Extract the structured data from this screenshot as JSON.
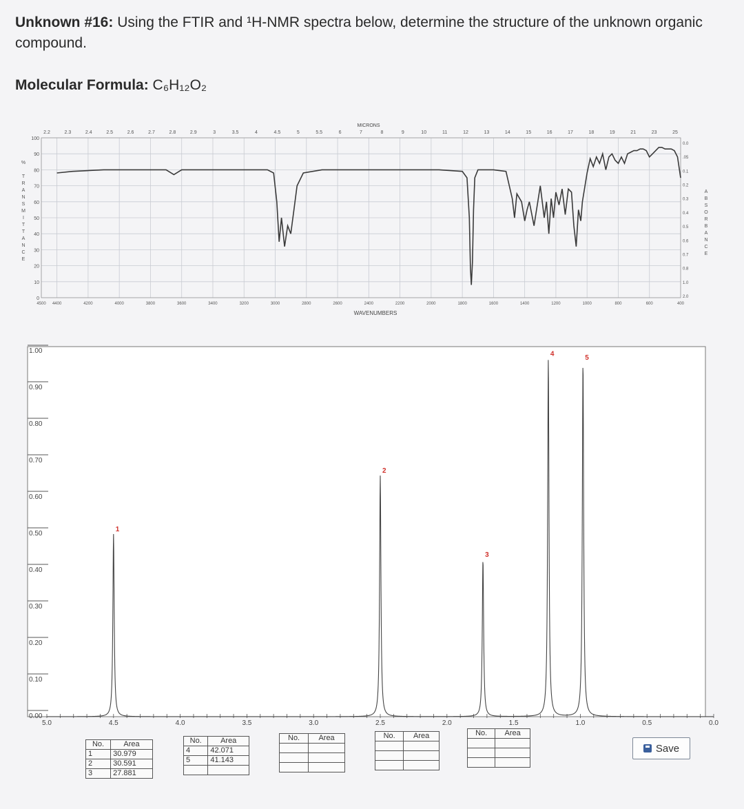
{
  "question": {
    "label": "Unknown #16:",
    "text": " Using the FTIR and ¹H-NMR spectra below, determine the structure of the unknown organic compound."
  },
  "formula": {
    "label": "Molecular Formula:",
    "value": " C₆H₁₂O₂"
  },
  "chart_data": [
    {
      "type": "line",
      "title": "",
      "xlabel": "WAVENUMBERS",
      "top_axis_label": "MICRONS",
      "ylabel": "% TRANSMITTANCE",
      "right_axis_label": "ABSORBANCE",
      "x_axis_reversed": true,
      "xlim": [
        4500,
        400
      ],
      "ylim": [
        0,
        100
      ],
      "grid": true,
      "x_ticks": [
        "4500",
        "4400",
        "4200",
        "4000",
        "3800",
        "3600",
        "3400",
        "3200",
        "3000",
        "2800",
        "2600",
        "2400",
        "2200",
        "2000",
        "1800",
        "1600",
        "1400",
        "1200",
        "1000",
        "800",
        "600",
        "400"
      ],
      "y_ticks": [
        "100",
        "90",
        "80",
        "70",
        "60",
        "50",
        "40",
        "30",
        "20",
        "10",
        "0"
      ],
      "top_ticks": [
        "2.2",
        "2.3",
        "2.4",
        "2.5",
        "2.6",
        "2.7",
        "2.8",
        "2.9",
        "3",
        "3.5",
        "4",
        "4.5",
        "5",
        "5.5",
        "6",
        "7",
        "8",
        "9",
        "10",
        "11",
        "12",
        "13",
        "14",
        "15",
        "16",
        "17",
        "18",
        "19",
        "21",
        "23",
        "25"
      ],
      "right_ticks": [
        "0.0",
        ".05",
        "0.1",
        "0.2",
        "0.3",
        "0.4",
        "0.5",
        "0.6",
        "0.7",
        "0.8",
        "1.0",
        "2.0"
      ],
      "series": [
        {
          "x": [
            4400,
            4300,
            4100,
            3900,
            3700,
            3650,
            3600,
            3550,
            3500,
            3300,
            3100,
            3050,
            3010,
            2990,
            2975,
            2960,
            2940,
            2920,
            2900,
            2880,
            2860,
            2820,
            2700,
            2500,
            2300,
            2100,
            1950,
            1800,
            1770,
            1755,
            1748,
            1742,
            1735,
            1728,
            1720,
            1700,
            1650,
            1600,
            1520,
            1480,
            1465,
            1450,
            1420,
            1400,
            1385,
            1370,
            1340,
            1300,
            1275,
            1260,
            1245,
            1230,
            1215,
            1200,
            1180,
            1160,
            1140,
            1120,
            1100,
            1085,
            1070,
            1055,
            1040,
            1030,
            1000,
            980,
            960,
            940,
            920,
            900,
            880,
            860,
            840,
            820,
            800,
            780,
            760,
            740,
            720,
            700,
            680,
            660,
            640,
            620,
            600,
            580,
            560,
            540,
            520,
            500,
            480,
            460,
            440,
            420,
            400
          ],
          "y": [
            78,
            79,
            80,
            80,
            80,
            77,
            80,
            80,
            80,
            80,
            80,
            80,
            78,
            60,
            35,
            50,
            32,
            45,
            40,
            55,
            70,
            78,
            80,
            80,
            80,
            80,
            80,
            79,
            75,
            50,
            18,
            8,
            22,
            55,
            75,
            80,
            80,
            80,
            79,
            62,
            50,
            65,
            60,
            48,
            55,
            60,
            45,
            70,
            50,
            60,
            40,
            62,
            50,
            66,
            58,
            68,
            52,
            68,
            66,
            45,
            32,
            55,
            48,
            60,
            78,
            87,
            82,
            88,
            84,
            90,
            80,
            88,
            90,
            86,
            84,
            88,
            84,
            90,
            91,
            92,
            92,
            93,
            93,
            92,
            88,
            90,
            92,
            94,
            94,
            93,
            93,
            93,
            92,
            88,
            75
          ]
        }
      ]
    },
    {
      "type": "line",
      "title": "",
      "xlabel": "",
      "ylabel": "",
      "x_axis_reversed": true,
      "xlim": [
        5.0,
        0.0
      ],
      "ylim": [
        0,
        1.0
      ],
      "x_ticks": [
        "5.0",
        "4.5",
        "4.0",
        "3.5",
        "3.0",
        "2.5",
        "2.0",
        "1.5",
        "1.0",
        "0.5",
        "0.0"
      ],
      "y_ticks": [
        "1.00",
        "0.90",
        "0.80",
        "0.70",
        "0.60",
        "0.50",
        "0.40",
        "0.30",
        "0.20",
        "0.10",
        "0.00"
      ],
      "peaks": [
        {
          "label": "1",
          "ppm": 4.5,
          "height": 0.5
        },
        {
          "label": "2",
          "ppm": 2.5,
          "height": 0.66
        },
        {
          "label": "3",
          "ppm": 1.73,
          "height": 0.43
        },
        {
          "label": "4",
          "ppm": 1.24,
          "height": 0.98
        },
        {
          "label": "5",
          "ppm": 0.98,
          "height": 0.97
        }
      ],
      "integration_tables": [
        {
          "headers": [
            "No.",
            "Area"
          ],
          "rows": [
            [
              "1",
              "30.979"
            ],
            [
              "2",
              "30.591"
            ],
            [
              "3",
              "27.881"
            ]
          ]
        },
        {
          "headers": [
            "No.",
            "Area"
          ],
          "rows": [
            [
              "4",
              "42.071"
            ],
            [
              "5",
              "41.143"
            ]
          ]
        },
        {
          "headers": [
            "No.",
            "Area"
          ],
          "rows": []
        },
        {
          "headers": [
            "No.",
            "Area"
          ],
          "rows": []
        },
        {
          "headers": [
            "No.",
            "Area"
          ],
          "rows": []
        }
      ]
    }
  ],
  "ui": {
    "save_label": "Save"
  }
}
